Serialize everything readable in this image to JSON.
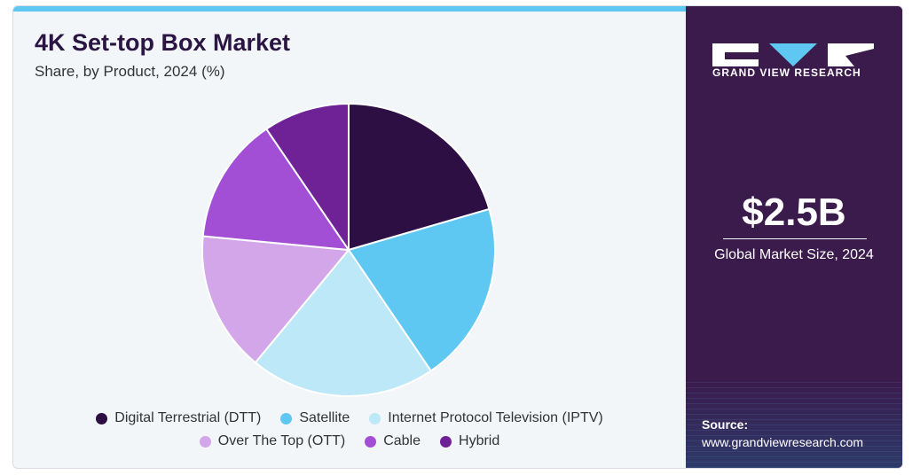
{
  "header": {
    "title": "4K Set-top Box Market",
    "subtitle": "Share, by Product, 2024 (%)"
  },
  "chart_data": {
    "type": "pie",
    "title": "4K Set-top Box Market",
    "subtitle": "Share, by Product, 2024 (%)",
    "categories": [
      "Digital Terrestrial (DTT)",
      "Satellite",
      "Internet Protocol Television (IPTV)",
      "Over The Top (OTT)",
      "Cable",
      "Hybrid"
    ],
    "values": [
      20.5,
      20.0,
      20.5,
      15.5,
      14.0,
      9.5
    ],
    "colors": [
      "#2d0f44",
      "#5ec8f2",
      "#bde8f8",
      "#d3a6ea",
      "#a24fd6",
      "#6e2296"
    ],
    "start_angle_deg": 0,
    "direction": "clockwise",
    "legend_position": "bottom"
  },
  "legend": {
    "row1": [
      {
        "label": "Digital Terrestrial (DTT)",
        "color": "#2d0f44"
      },
      {
        "label": "Satellite",
        "color": "#5ec8f2"
      },
      {
        "label": "Internet Protocol Television (IPTV)",
        "color": "#bde8f8"
      }
    ],
    "row2": [
      {
        "label": "Over The Top (OTT)",
        "color": "#d3a6ea"
      },
      {
        "label": "Cable",
        "color": "#a24fd6"
      },
      {
        "label": "Hybrid",
        "color": "#6e2296"
      }
    ]
  },
  "side_panel": {
    "brand": "GRAND VIEW RESEARCH",
    "market_value": "$2.5B",
    "market_caption": "Global Market Size, 2024",
    "source_label": "Source:",
    "source_url": "www.grandviewresearch.com",
    "colors": {
      "background": "#3b1a4c",
      "accent": "#5ec8f2"
    }
  }
}
